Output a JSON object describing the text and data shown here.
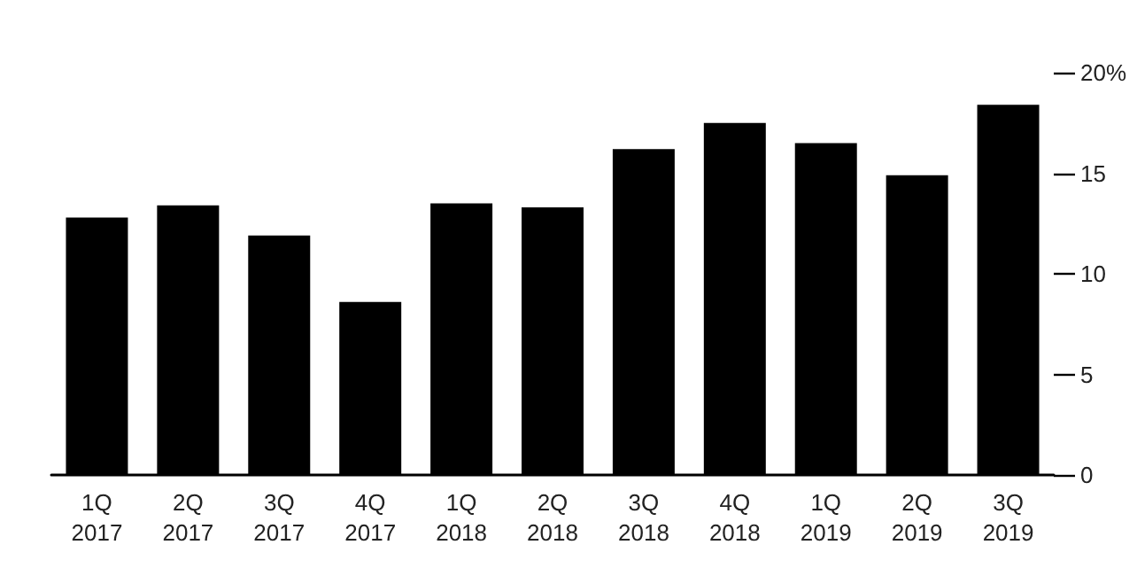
{
  "chart_data": {
    "type": "bar",
    "categories": [
      "1Q\n2017",
      "2Q\n2017",
      "3Q\n2017",
      "4Q\n2017",
      "1Q\n2018",
      "2Q\n2018",
      "3Q\n2018",
      "4Q\n2018",
      "1Q\n2019",
      "2Q\n2019",
      "3Q\n2019"
    ],
    "values": [
      12.8,
      13.4,
      11.9,
      8.6,
      13.5,
      13.3,
      16.2,
      17.5,
      16.5,
      14.9,
      18.4
    ],
    "color": "#000000",
    "ylim": [
      0,
      20
    ],
    "yticks": [
      0,
      5,
      10,
      15,
      {
        "value": 20,
        "label": "20%"
      }
    ],
    "grid": false
  }
}
